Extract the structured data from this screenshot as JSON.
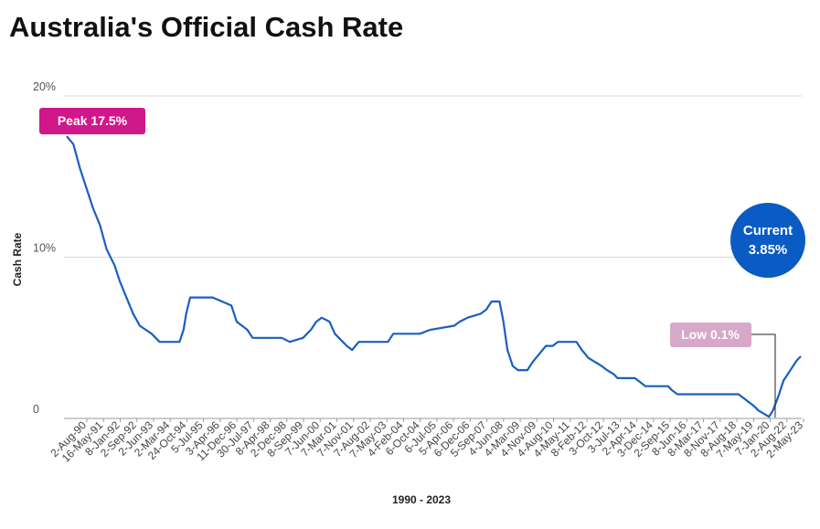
{
  "title": "Australia's Official Cash Rate",
  "chart_data": {
    "type": "line",
    "title": "Australia's Official Cash Rate",
    "xlabel": "1990 - 2023",
    "ylabel": "Cash Rate",
    "ylim": [
      0,
      20
    ],
    "y_ticks": [
      "0",
      "10%",
      "20%"
    ],
    "y_tick_values": [
      0,
      10,
      20
    ],
    "grid": true,
    "x_tick_labels": [
      "2-Aug-90",
      "16-May-91",
      "8-Jan-92",
      "2-Sep-92",
      "2-Jun-93",
      "2-Mar-94",
      "24-Oct-94",
      "5-Jul-95",
      "3-Apr-96",
      "11-Dec-96",
      "30-Jul-97",
      "8-Apr-98",
      "2-Dec-98",
      "8-Sep-99",
      "7-Jun-00",
      "7-Mar-01",
      "7-Nov-01",
      "7-Aug-02",
      "7-May-03",
      "4-Feb-04",
      "6-Oct-04",
      "6-Jul-05",
      "5-Apr-06",
      "6-Dec-06",
      "5-Sep-07",
      "4-Jun-08",
      "4-Mar-09",
      "4-Nov-09",
      "4-Aug-10",
      "4-May-11",
      "8-Feb-12",
      "3-Oct-12",
      "3-Jul-13",
      "2-Apr-14",
      "3-Dec-14",
      "2-Sep-15",
      "8-Jun-16",
      "8-Mar-17",
      "8-Nov-17",
      "8-Aug-18",
      "7-May-19",
      "7-Jan-20",
      "2-Aug-22",
      "2-May-23"
    ],
    "series": [
      {
        "color": "#1a5fbf",
        "points": [
          [
            0,
            17.5
          ],
          [
            0.5,
            17.0
          ],
          [
            1,
            15.5
          ],
          [
            1.6,
            14.0
          ],
          [
            2,
            13.0
          ],
          [
            2.5,
            12.0
          ],
          [
            3,
            10.5
          ],
          [
            3.6,
            9.5
          ],
          [
            4,
            8.5
          ],
          [
            4.5,
            7.5
          ],
          [
            5,
            6.5
          ],
          [
            5.5,
            5.75
          ],
          [
            6.4,
            5.25
          ],
          [
            7,
            4.75
          ],
          [
            8.5,
            4.75
          ],
          [
            8.8,
            5.5
          ],
          [
            9,
            6.5
          ],
          [
            9.3,
            7.5
          ],
          [
            11,
            7.5
          ],
          [
            12.4,
            7.0
          ],
          [
            12.8,
            6.0
          ],
          [
            13.6,
            5.5
          ],
          [
            14,
            5.0
          ],
          [
            16.2,
            5.0
          ],
          [
            16.8,
            4.75
          ],
          [
            17.8,
            5.0
          ],
          [
            18.4,
            5.5
          ],
          [
            18.8,
            6.0
          ],
          [
            19.2,
            6.25
          ],
          [
            19.8,
            6.0
          ],
          [
            20.2,
            5.25
          ],
          [
            20.8,
            4.75
          ],
          [
            21.1,
            4.5
          ],
          [
            21.5,
            4.25
          ],
          [
            22,
            4.75
          ],
          [
            24.2,
            4.75
          ],
          [
            24.6,
            5.25
          ],
          [
            26.6,
            5.25
          ],
          [
            27.4,
            5.5
          ],
          [
            29.2,
            5.75
          ],
          [
            29.6,
            6.0
          ],
          [
            30.2,
            6.25
          ],
          [
            31.2,
            6.5
          ],
          [
            31.6,
            6.75
          ],
          [
            32,
            7.25
          ],
          [
            32.6,
            7.25
          ],
          [
            32.9,
            6.0
          ],
          [
            33.2,
            4.25
          ],
          [
            33.6,
            3.25
          ],
          [
            34,
            3.0
          ],
          [
            34.7,
            3.0
          ],
          [
            35.1,
            3.5
          ],
          [
            35.6,
            4.0
          ],
          [
            36.1,
            4.5
          ],
          [
            36.6,
            4.5
          ],
          [
            37,
            4.75
          ],
          [
            38.4,
            4.75
          ],
          [
            38.8,
            4.25
          ],
          [
            39.3,
            3.75
          ],
          [
            39.8,
            3.5
          ],
          [
            40.3,
            3.25
          ],
          [
            40.7,
            3.0
          ],
          [
            41.2,
            2.75
          ],
          [
            41.5,
            2.5
          ],
          [
            42.8,
            2.5
          ],
          [
            43.2,
            2.25
          ],
          [
            43.6,
            2.0
          ],
          [
            45.3,
            2.0
          ],
          [
            45.6,
            1.75
          ],
          [
            46,
            1.5
          ],
          [
            50.6,
            1.5
          ],
          [
            51,
            1.25
          ],
          [
            51.4,
            1.0
          ],
          [
            51.8,
            0.75
          ],
          [
            52.1,
            0.5
          ],
          [
            52.6,
            0.25
          ],
          [
            52.9,
            0.1
          ],
          [
            53.2,
            0.5
          ],
          [
            53.6,
            1.35
          ],
          [
            54,
            2.35
          ],
          [
            54.6,
            3.1
          ],
          [
            55,
            3.6
          ],
          [
            55.3,
            3.85
          ]
        ]
      }
    ],
    "annotations": {
      "peak": {
        "label": "Peak 17.5%",
        "color": "#d0188a"
      },
      "current": {
        "line1": "Current",
        "line2": "3.85%",
        "color": "#0a5bc4"
      },
      "low": {
        "label": "Low 0.1%",
        "color": "#d8a8c8"
      }
    }
  }
}
